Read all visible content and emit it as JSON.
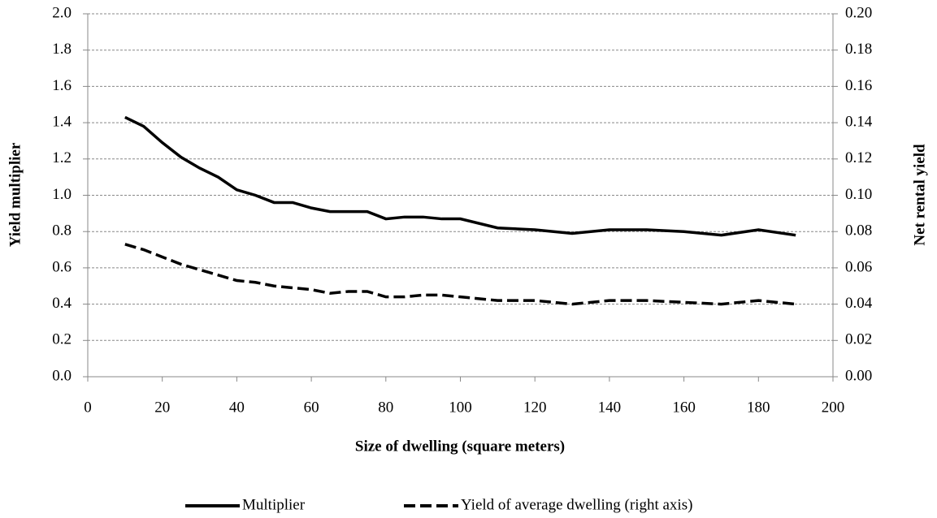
{
  "chart_data": {
    "type": "line",
    "x_label": "Size of dwelling (square  meters)",
    "y_label": "Yield multiplier",
    "y2_label": "Net rental yield",
    "x": [
      10,
      15,
      20,
      25,
      30,
      35,
      40,
      45,
      50,
      55,
      60,
      65,
      70,
      75,
      80,
      85,
      90,
      95,
      100,
      110,
      120,
      130,
      140,
      150,
      160,
      170,
      180,
      190
    ],
    "series": [
      {
        "name": "Multiplier",
        "color": "#000000",
        "line_style": "solid",
        "axis": "y",
        "values": [
          1.43,
          1.38,
          1.29,
          1.21,
          1.15,
          1.1,
          1.03,
          1.0,
          0.96,
          0.96,
          0.93,
          0.91,
          0.91,
          0.91,
          0.87,
          0.88,
          0.88,
          0.87,
          0.87,
          0.82,
          0.81,
          0.79,
          0.81,
          0.81,
          0.8,
          0.78,
          0.81,
          0.78
        ]
      },
      {
        "name": "Yield of average dwelling (right axis)",
        "color": "#000000",
        "line_style": "dashed",
        "axis": "y2",
        "values": [
          0.073,
          0.07,
          0.066,
          0.062,
          0.059,
          0.056,
          0.053,
          0.052,
          0.05,
          0.049,
          0.048,
          0.046,
          0.047,
          0.047,
          0.044,
          0.044,
          0.045,
          0.045,
          0.044,
          0.042,
          0.042,
          0.04,
          0.042,
          0.042,
          0.041,
          0.04,
          0.042,
          0.04
        ]
      }
    ],
    "xlim": [
      0,
      200
    ],
    "xticks": [
      0,
      20,
      40,
      60,
      80,
      100,
      120,
      140,
      160,
      180,
      200
    ],
    "ylim": [
      0,
      2
    ],
    "yticks": [
      {
        "value": 0,
        "label": "0.0"
      },
      0.2,
      0.4,
      0.6,
      0.8,
      {
        "value": 1,
        "label": "1.0"
      },
      1.2,
      1.4,
      1.6,
      1.8,
      {
        "value": 2,
        "label": "2.0"
      }
    ],
    "y2lim": [
      0,
      0.2
    ],
    "y2ticks": [
      {
        "value": 0,
        "label": "0.00"
      },
      0.02,
      0.04,
      0.06,
      0.08,
      {
        "value": 0.1,
        "label": "0.10"
      },
      0.12,
      0.14,
      0.16,
      0.18,
      {
        "value": 0.2,
        "label": "0.20"
      }
    ],
    "grid": true,
    "legend": "bottom"
  }
}
